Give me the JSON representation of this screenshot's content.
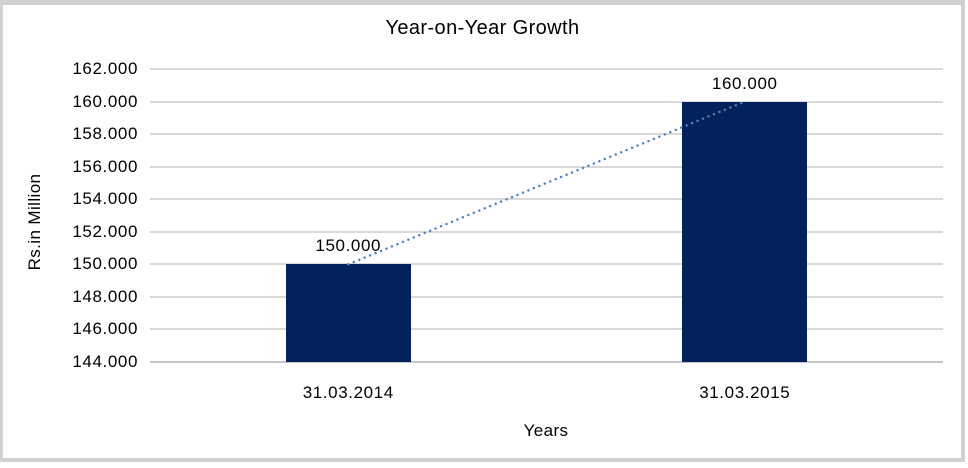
{
  "frame": {
    "border_color": "#d2d2d2"
  },
  "chart_data": {
    "type": "bar",
    "title": "Year-on-Year Growth",
    "xlabel": "Years",
    "ylabel": "Rs.in Million",
    "categories": [
      "31.03.2014",
      "31.03.2015"
    ],
    "values": [
      150000,
      160000
    ],
    "value_labels": [
      "150.000",
      "160.000"
    ],
    "ylim": [
      144000,
      162000
    ],
    "ytick_step": 2000,
    "ytick_labels": [
      "162.000",
      "160.000",
      "158.000",
      "156.000",
      "154.000",
      "152.000",
      "150.000",
      "148.000",
      "146.000",
      "144.000"
    ],
    "grid": true,
    "legend": "none",
    "bar_color": "#03225c",
    "gridline_color": "#d9d9d9",
    "axis_line_color": "#c6c6c6",
    "text_color": "#000000",
    "trendline": {
      "show": true,
      "color": "#4f81bd",
      "style": "dotted"
    }
  }
}
